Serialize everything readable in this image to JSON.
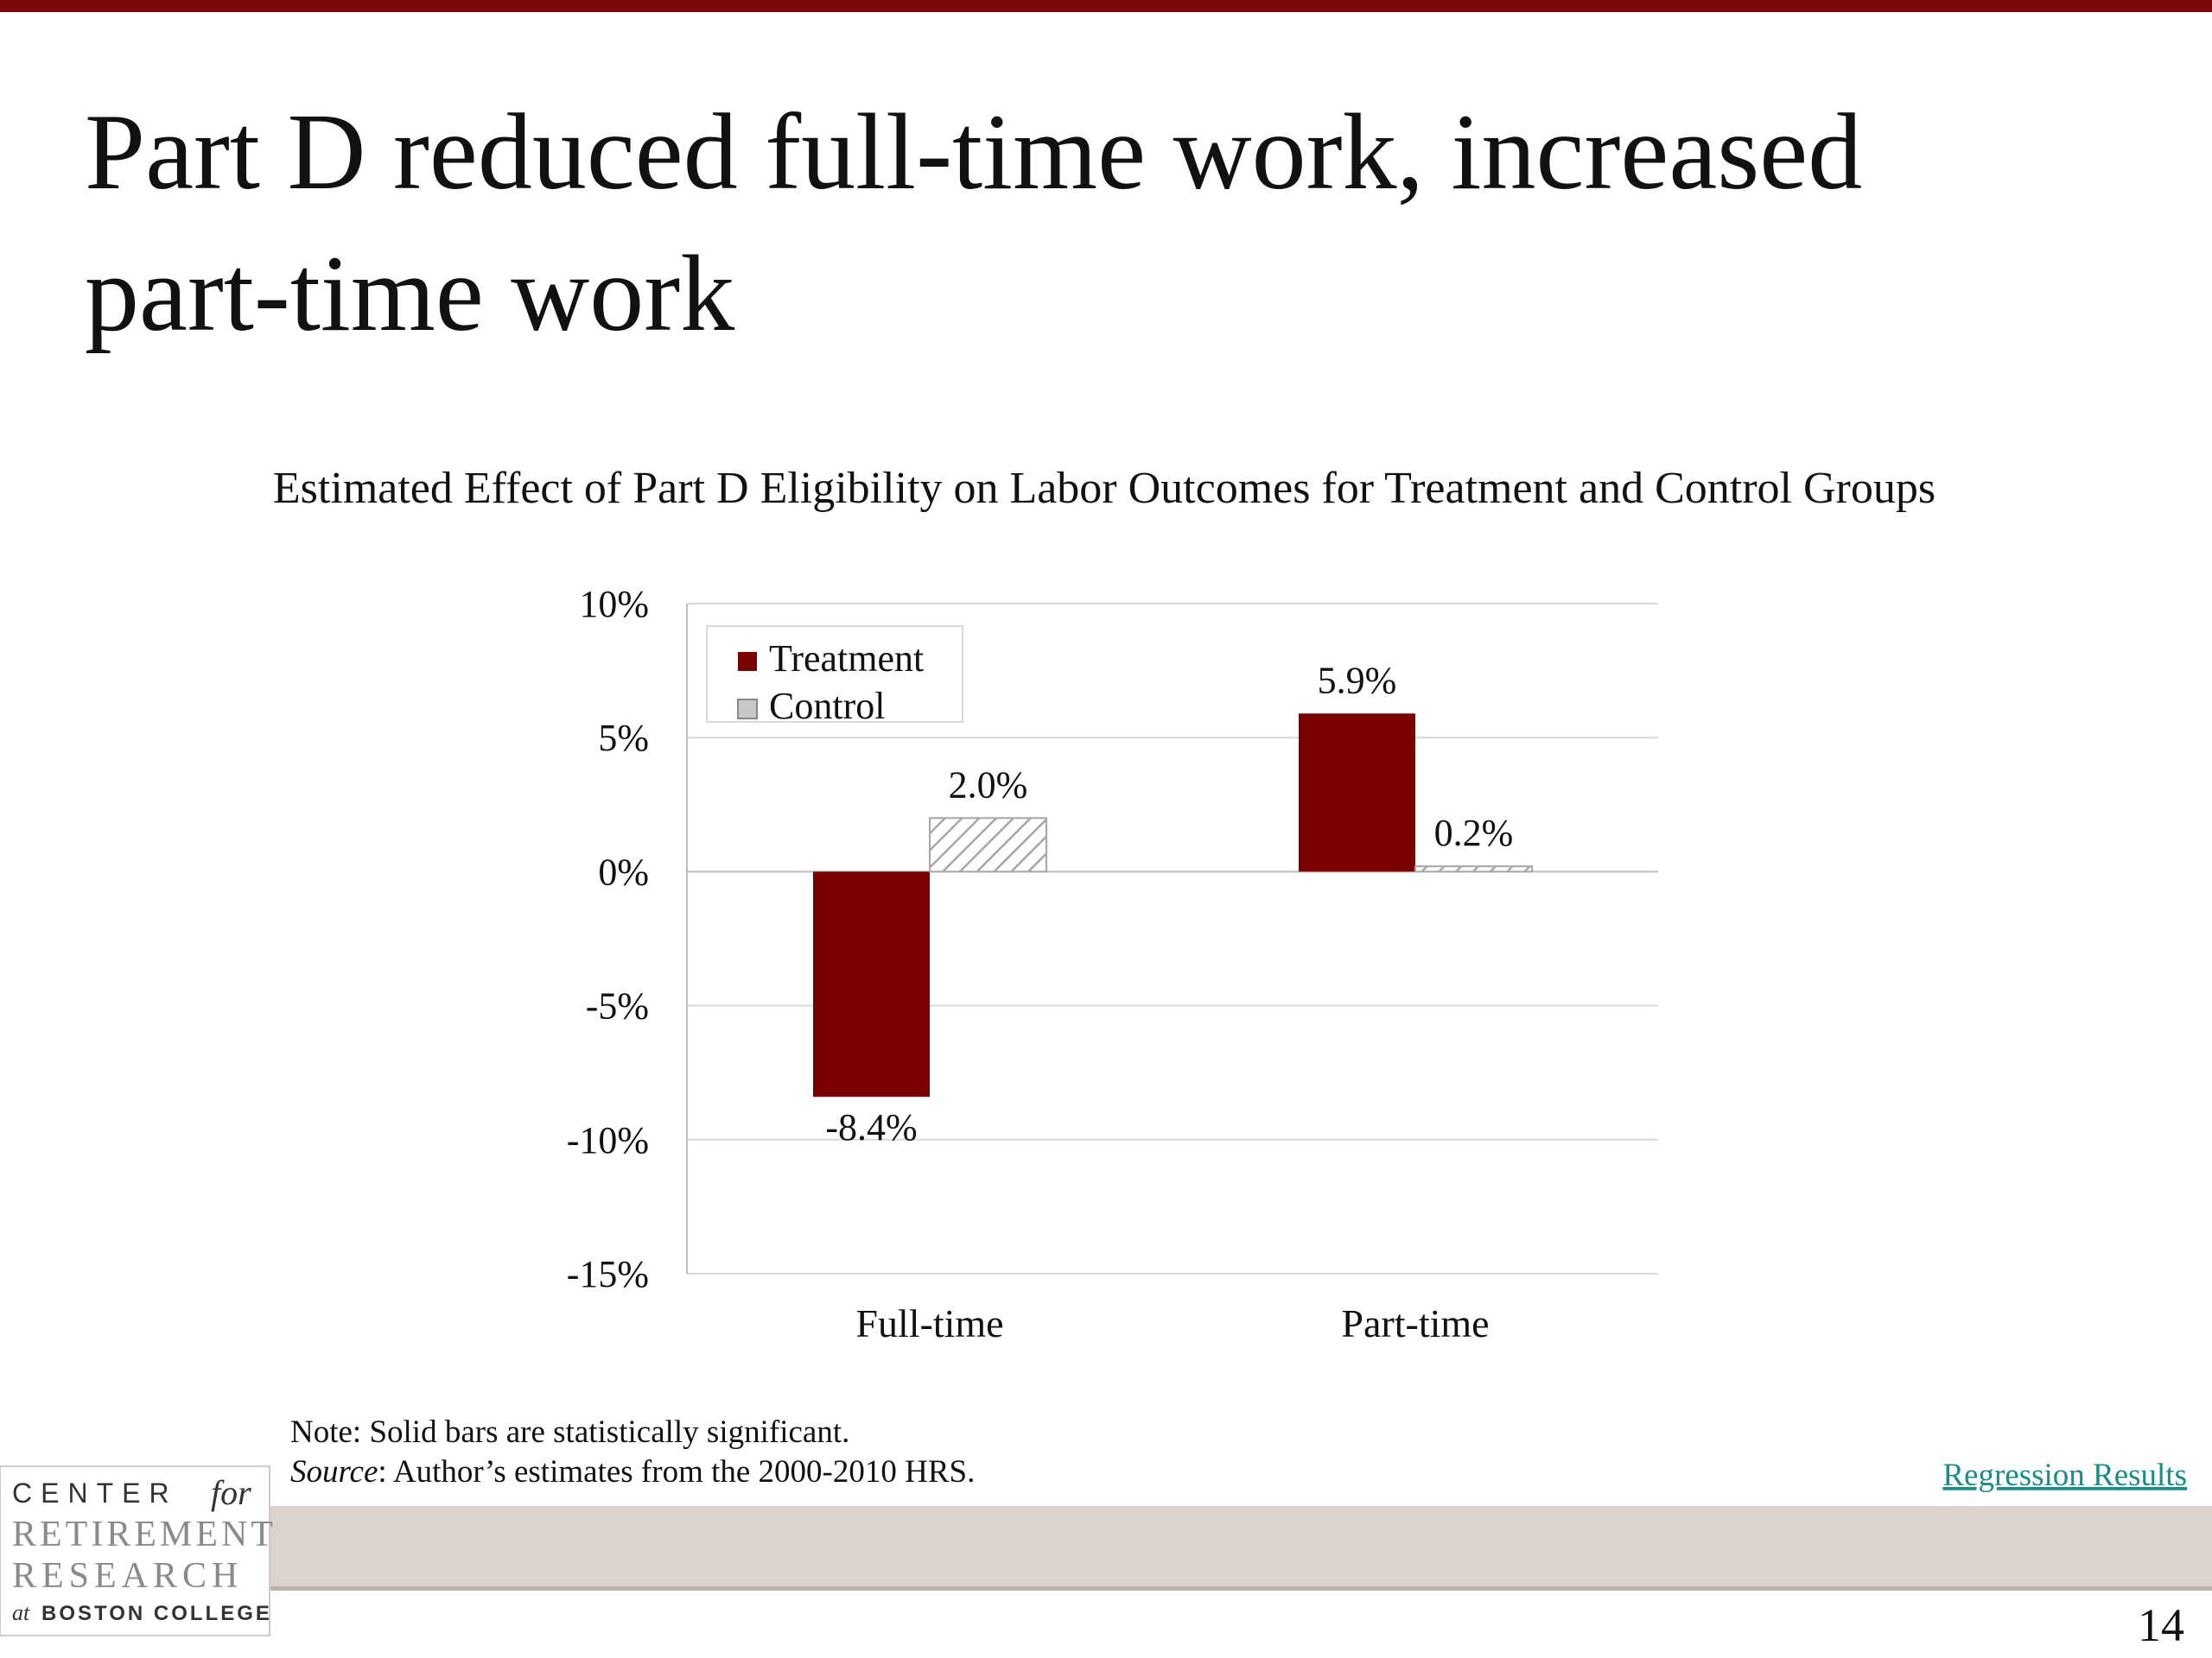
{
  "slide_title": [
    "Part D reduced full-time work, increased",
    "part-time work"
  ],
  "chart_data": {
    "type": "bar",
    "title": "Estimated Effect of Part D Eligibility on Labor Outcomes for Treatment and Control Groups",
    "categories": [
      "Full-time",
      "Part-time"
    ],
    "series": [
      {
        "name": "Treatment",
        "color": "#7b0000",
        "values": [
          -8.4,
          5.9
        ],
        "value_labels": [
          "-8.4%",
          "5.9%"
        ]
      },
      {
        "name": "Control",
        "color": "#a6a6a6",
        "pattern": "hatch",
        "values": [
          2.0,
          0.2
        ],
        "value_labels": [
          "2.0%",
          "0.2%"
        ]
      }
    ],
    "ylim": [
      -15,
      10
    ],
    "yticks": [
      {
        "value": -15,
        "label": "-15%"
      },
      {
        "value": -10,
        "label": "-10%"
      },
      {
        "value": -5,
        "label": "-5%"
      },
      {
        "value": 0,
        "label": "0%"
      },
      {
        "value": 5,
        "label": "5%"
      },
      {
        "value": 10,
        "label": "10%"
      }
    ],
    "grid": true,
    "legend": "upper-left"
  },
  "note": "Note: Solid bars are statistically significant.",
  "source_label": "Source",
  "source_text": ": Author’s estimates from the 2000-2010 HRS.",
  "link": "Regression Results",
  "page_number": "14",
  "logo": {
    "line1": "CENTER",
    "line1b": "for",
    "line2": "RETIREMENT",
    "line3": "RESEARCH",
    "line4a": "at",
    "line4b": "BOSTON COLLEGE"
  }
}
